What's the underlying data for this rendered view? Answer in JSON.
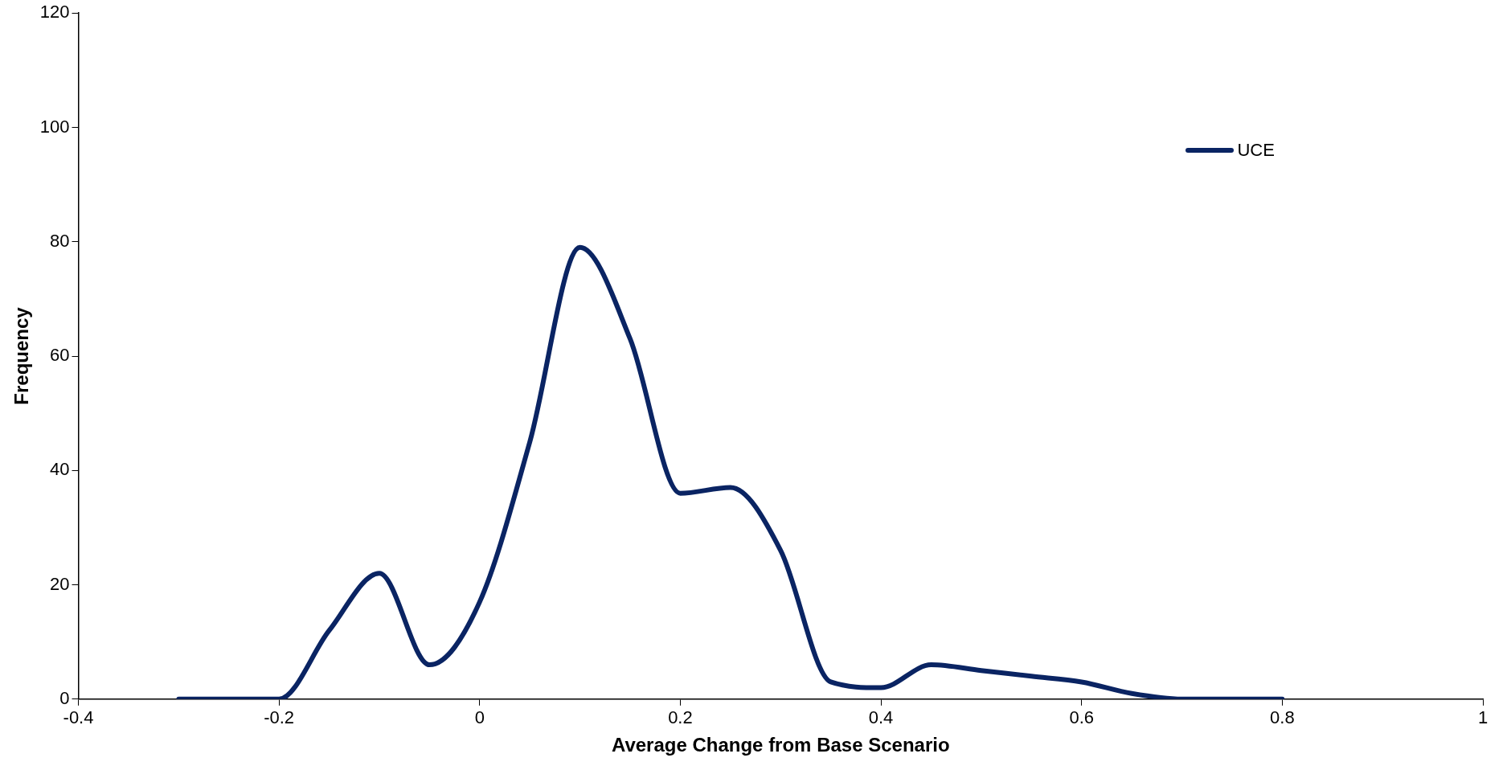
{
  "chart_data": {
    "type": "line",
    "xlabel": "Average Change from Base Scenario",
    "ylabel": "Frequency",
    "x": [
      -0.3,
      -0.25,
      -0.2,
      -0.15,
      -0.1,
      -0.05,
      0,
      0.05,
      0.1,
      0.15,
      0.2,
      0.25,
      0.3,
      0.35,
      0.4,
      0.45,
      0.5,
      0.55,
      0.6,
      0.65,
      0.7,
      0.75,
      0.8
    ],
    "series": [
      {
        "name": "UCE",
        "color": "#0a2463",
        "values": [
          0,
          0,
          0,
          12,
          22,
          6,
          17,
          45,
          79,
          63,
          36,
          37,
          26,
          3,
          2,
          6,
          5,
          4,
          3,
          1,
          0,
          0,
          0
        ]
      }
    ],
    "xlim": [
      -0.4,
      1
    ],
    "xticks": [
      -0.4,
      -0.2,
      0,
      0.2,
      0.4,
      0.6,
      0.8,
      1
    ],
    "ylim": [
      0,
      120
    ],
    "yticks": [
      0,
      20,
      40,
      60,
      80,
      100,
      120
    ],
    "grid": false,
    "legend": "top right",
    "marker": "none",
    "line_style": "solid"
  }
}
